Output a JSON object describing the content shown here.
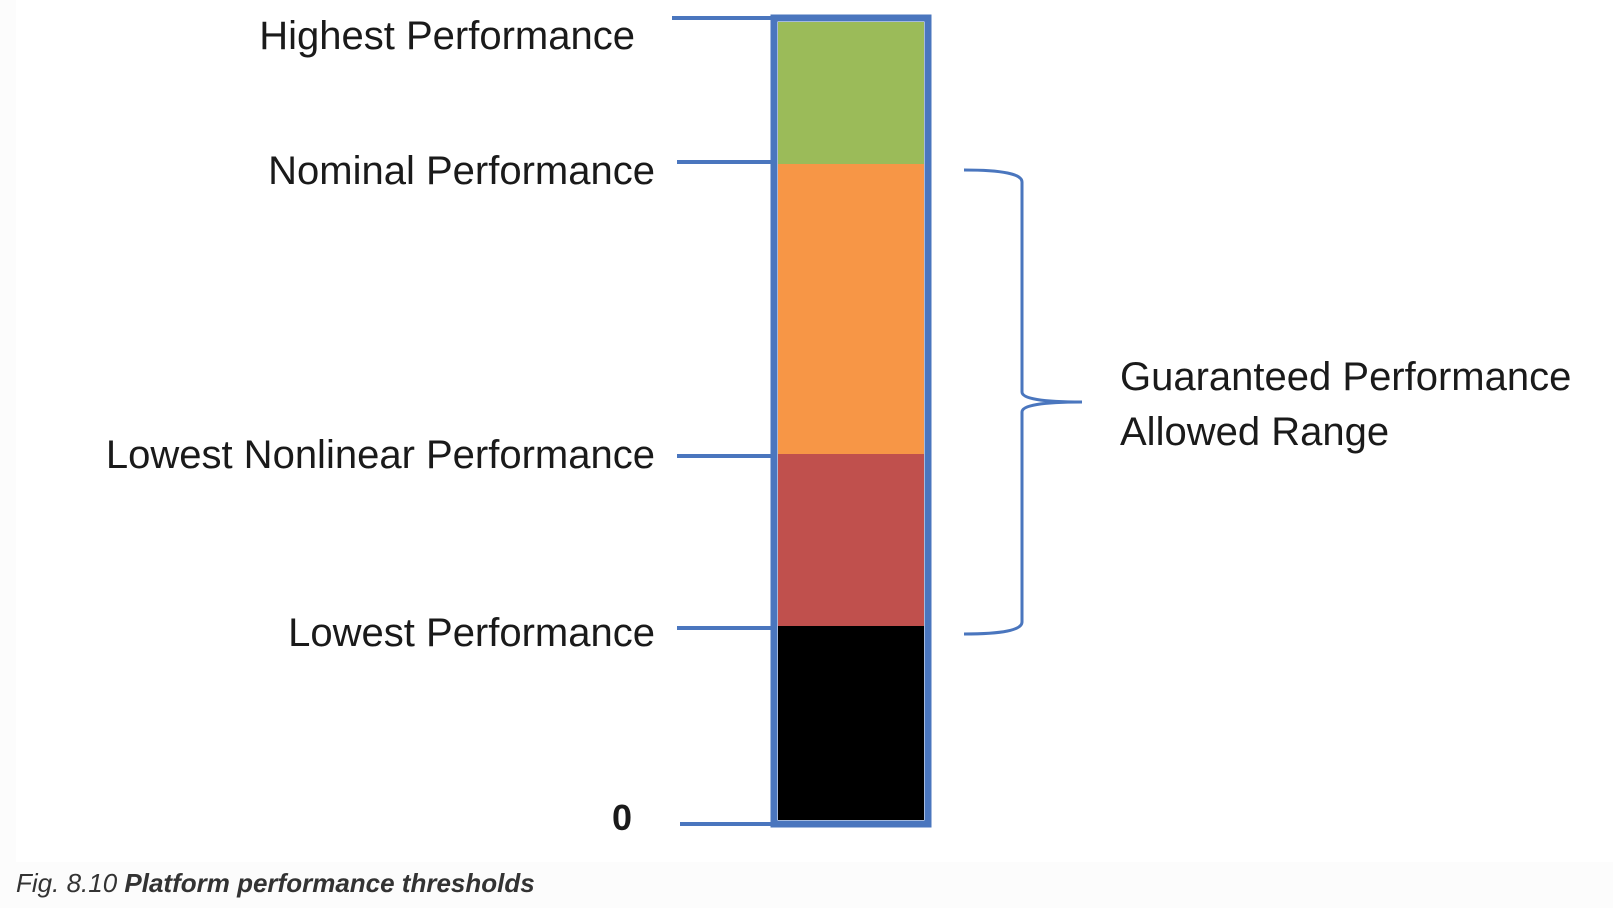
{
  "levels": {
    "highest": "Highest Performance",
    "nominal": "Nominal Performance",
    "lowest_nonlinear": "Lowest Nonlinear Performance",
    "lowest": "Lowest Performance",
    "zero": "0"
  },
  "range_label": {
    "line1": "Guaranteed Performance",
    "line2": "Allowed Range"
  },
  "caption": {
    "number": "Fig. 8.10",
    "title": "Platform performance thresholds"
  },
  "colors": {
    "frame": "#4a76be",
    "brace": "#4a76be",
    "highest_band": "#9bbb59",
    "nominal_band": "#f79646",
    "nonlinear_band": "#c0504d",
    "lowest_band": "#000000"
  }
}
